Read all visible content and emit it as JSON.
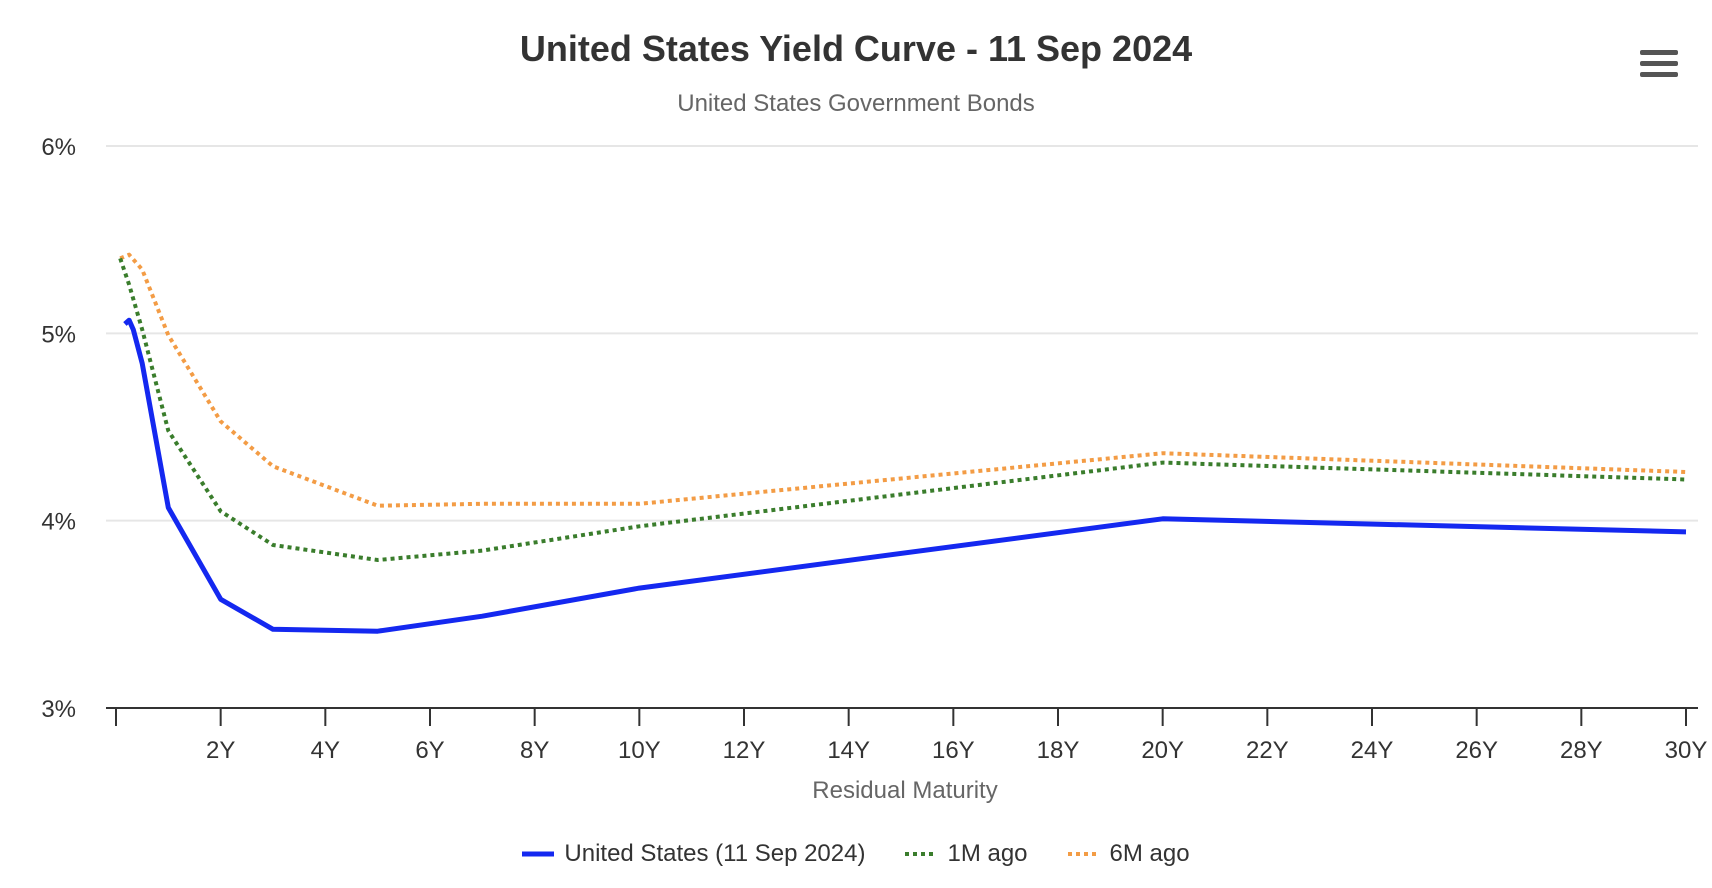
{
  "chart_data": {
    "type": "line",
    "title": "United States Yield Curve - 11 Sep 2024",
    "subtitle": "United States Government Bonds",
    "xlabel": "Residual Maturity",
    "ylabel": "",
    "xlim": [
      0,
      30
    ],
    "ylim": [
      3,
      6
    ],
    "y_ticks": [
      3,
      4,
      5,
      6
    ],
    "y_tick_labels": [
      "3%",
      "4%",
      "5%",
      "6%"
    ],
    "x_ticks": [
      2,
      4,
      6,
      8,
      10,
      12,
      14,
      16,
      18,
      20,
      22,
      24,
      26,
      28,
      30
    ],
    "x_tick_labels": [
      "2Y",
      "4Y",
      "6Y",
      "8Y",
      "10Y",
      "12Y",
      "14Y",
      "16Y",
      "18Y",
      "20Y",
      "22Y",
      "24Y",
      "26Y",
      "28Y",
      "30Y"
    ],
    "x_minor_ticks": [
      0
    ],
    "grid": true,
    "legend_position": "bottom",
    "series": [
      {
        "name": "United States (11 Sep 2024)",
        "color": "#1428f0",
        "style": "solid",
        "x": [
          0.17,
          0.25,
          0.33,
          0.5,
          1,
          2,
          3,
          5,
          7,
          10,
          20,
          30
        ],
        "values": [
          5.05,
          5.07,
          5.02,
          4.84,
          4.07,
          3.58,
          3.42,
          3.41,
          3.49,
          3.64,
          4.01,
          3.94
        ]
      },
      {
        "name": "1M ago",
        "color": "#3a7d2c",
        "style": "dotted",
        "x": [
          0.08,
          0.25,
          0.5,
          1,
          2,
          3,
          5,
          7,
          10,
          20,
          30
        ],
        "values": [
          5.4,
          5.26,
          5.02,
          4.48,
          4.05,
          3.87,
          3.79,
          3.84,
          3.97,
          4.31,
          4.22
        ]
      },
      {
        "name": "6M ago",
        "color": "#f39c45",
        "style": "dotted",
        "x": [
          0.08,
          0.25,
          0.5,
          1,
          2,
          3,
          5,
          7,
          10,
          20,
          30
        ],
        "values": [
          5.4,
          5.42,
          5.34,
          4.99,
          4.53,
          4.29,
          4.08,
          4.09,
          4.09,
          4.36,
          4.26
        ]
      }
    ]
  },
  "toolbar": {
    "menu_icon": "hamburger-icon"
  }
}
